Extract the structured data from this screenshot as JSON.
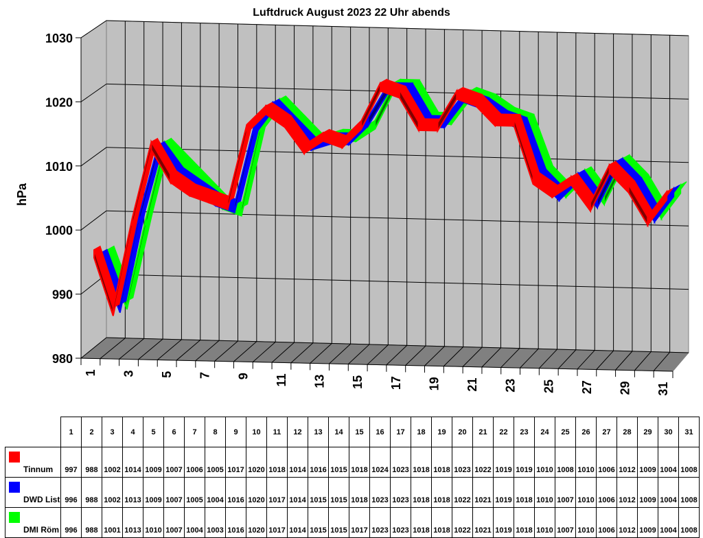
{
  "chart_data": {
    "type": "line",
    "style": "3d-ribbon",
    "title": "Luftdruck August 2023 22 Uhr abends",
    "xlabel": "",
    "ylabel": "hPa",
    "ylim": [
      980,
      1030
    ],
    "yticks": [
      980,
      990,
      1000,
      1010,
      1020,
      1030
    ],
    "x": [
      1,
      2,
      3,
      4,
      5,
      6,
      7,
      8,
      9,
      10,
      11,
      12,
      13,
      14,
      15,
      16,
      17,
      18,
      19,
      20,
      21,
      22,
      23,
      24,
      25,
      26,
      27,
      28,
      29,
      30,
      31
    ],
    "xtick_labels": [
      "1",
      "3",
      "5",
      "7",
      "9",
      "11",
      "13",
      "15",
      "17",
      "19",
      "21",
      "23",
      "25",
      "27",
      "29",
      "31"
    ],
    "grid": true,
    "legend_position": "table-left",
    "series": [
      {
        "name": "Tinnum",
        "color": "#ff0000",
        "values": [
          997,
          988,
          1002,
          1014,
          1009,
          1007,
          1006,
          1005,
          1017,
          1020,
          1018,
          1014,
          1016,
          1015,
          1018,
          1024,
          1023,
          1018,
          1018,
          1023,
          1022,
          1019,
          1019,
          1010,
          1008,
          1010,
          1006,
          1012,
          1009,
          1004,
          1008
        ]
      },
      {
        "name": "DWD List",
        "color": "#0000ff",
        "values": [
          996,
          988,
          1002,
          1013,
          1009,
          1007,
          1005,
          1004,
          1016,
          1020,
          1017,
          1014,
          1015,
          1015,
          1018,
          1023,
          1023,
          1018,
          1018,
          1022,
          1021,
          1019,
          1018,
          1010,
          1007,
          1010,
          1006,
          1012,
          1009,
          1004,
          1008
        ]
      },
      {
        "name": "DMI Röm",
        "color": "#00ff00",
        "values": [
          996,
          988,
          1001,
          1013,
          1010,
          1007,
          1004,
          1003,
          1016,
          1020,
          1017,
          1014,
          1015,
          1015,
          1017,
          1023,
          1023,
          1018,
          1018,
          1022,
          1021,
          1019,
          1018,
          1010,
          1007,
          1010,
          1006,
          1012,
          1009,
          1004,
          1008
        ]
      }
    ]
  }
}
